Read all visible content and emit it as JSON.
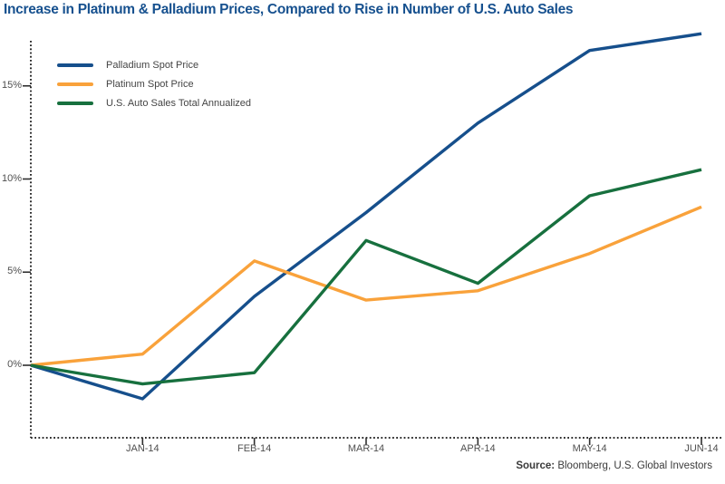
{
  "title": "Increase in Platinum & Palladium Prices, Compared to Rise in Number of U.S. Auto Sales",
  "source": {
    "label": "Source:",
    "text": " Bloomberg, U.S. Global Investors"
  },
  "colors": {
    "title": "#17518F",
    "axis": "#2E2E2E",
    "tick_label": "#4F4F4F",
    "legend_text": "#444444",
    "source_text": "#3A3A3A",
    "background": "#FFFFFF",
    "palladium_line": "#164F8C",
    "platinum_line": "#F9A23B",
    "auto_sales_line": "#17703E"
  },
  "chart_data": {
    "type": "line",
    "title": "Increase in Platinum & Palladium Prices, Compared to Rise in Number of U.S. Auto Sales",
    "xlabel": "",
    "ylabel": "",
    "x_tick_labels": [
      "JAN-14",
      "FEB-14",
      "MAR-14",
      "APR-14",
      "MAY-14",
      "JUN-14"
    ],
    "x_baseline_note": "all series start at an unlabeled 0% baseline on the y-axis, one interval before JAN-14",
    "y_ticks": [
      0,
      5,
      10,
      15
    ],
    "y_tick_labels": [
      "0%",
      "5%",
      "10%",
      "15%"
    ],
    "ylim": [
      -3.9,
      18.3
    ],
    "grid": false,
    "legend_position": "top-left",
    "series": [
      {
        "name": "Palladium Spot Price",
        "color": "#164F8C",
        "values_pct": [
          0,
          -1.8,
          3.7,
          8.2,
          13.0,
          16.9,
          17.8
        ]
      },
      {
        "name": "Platinum Spot Price",
        "color": "#F9A23B",
        "values_pct": [
          0,
          0.6,
          5.6,
          3.5,
          4.0,
          6.0,
          8.5
        ]
      },
      {
        "name": "U.S. Auto Sales Total Annualized",
        "color": "#17703E",
        "values_pct": [
          0,
          -1.0,
          -0.4,
          6.7,
          4.4,
          9.1,
          10.5
        ]
      }
    ]
  }
}
